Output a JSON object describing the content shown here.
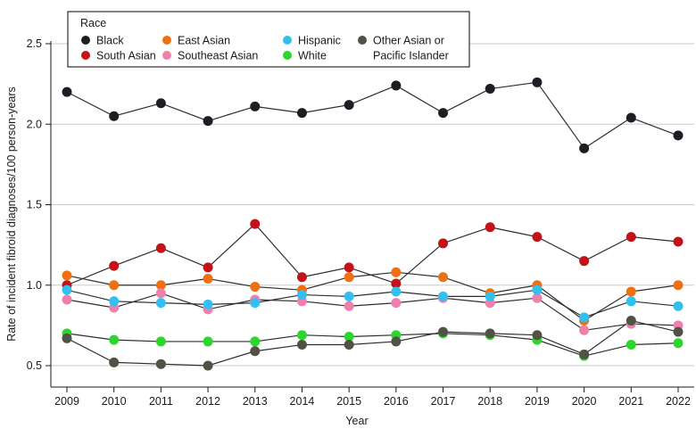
{
  "chart_data": {
    "type": "line",
    "title": "",
    "xlabel": "Year",
    "ylabel": "Rate of incident fibroid diagnoses/100 person-years",
    "legend_title": "Race",
    "x": [
      2009,
      2010,
      2011,
      2012,
      2013,
      2014,
      2015,
      2016,
      2017,
      2018,
      2019,
      2020,
      2021,
      2022
    ],
    "yticks": [
      "0.5",
      "1.0",
      "1.5",
      "2.0",
      "2.5"
    ],
    "ytick_values": [
      0.5,
      1.0,
      1.5,
      2.0,
      2.5
    ],
    "ylim": [
      0.45,
      2.55
    ],
    "grid": true,
    "legend_position": "top-left",
    "line_color": "#2e2e2e",
    "grid_color": "#cbcbcb",
    "axis_color": "#1a1a1a",
    "series": [
      {
        "name": "Black",
        "color": "#1b1e23",
        "values": [
          2.2,
          2.05,
          2.13,
          2.02,
          2.11,
          2.07,
          2.12,
          2.24,
          2.07,
          2.22,
          2.26,
          1.85,
          2.04,
          1.93
        ]
      },
      {
        "name": "South Asian",
        "color": "#c41219",
        "values": [
          1.0,
          1.12,
          1.23,
          1.11,
          1.38,
          1.05,
          1.11,
          1.01,
          1.26,
          1.36,
          1.3,
          1.15,
          1.3,
          1.27
        ]
      },
      {
        "name": "East Asian",
        "color": "#ee7111",
        "values": [
          1.06,
          1.0,
          1.0,
          1.04,
          0.99,
          0.97,
          1.05,
          1.08,
          1.05,
          0.95,
          1.0,
          0.78,
          0.96,
          1.0
        ]
      },
      {
        "name": "Southeast Asian",
        "color": "#f07fad",
        "values": [
          0.91,
          0.86,
          0.95,
          0.85,
          0.91,
          0.9,
          0.87,
          0.89,
          0.92,
          0.89,
          0.92,
          0.72,
          0.76,
          0.75
        ]
      },
      {
        "name": "Hispanic",
        "color": "#33bfef",
        "values": [
          0.97,
          0.9,
          0.89,
          0.88,
          0.89,
          0.94,
          0.93,
          0.96,
          0.93,
          0.93,
          0.97,
          0.8,
          0.9,
          0.87
        ]
      },
      {
        "name": "White",
        "color": "#2cd62c",
        "values": [
          0.7,
          0.66,
          0.65,
          0.65,
          0.65,
          0.69,
          0.68,
          0.69,
          0.7,
          0.69,
          0.66,
          0.56,
          0.63,
          0.64
        ]
      },
      {
        "name": "Other Asian or Pacific Islander",
        "color": "#4f5245",
        "legend_label_lines": [
          "Other Asian or",
          "Pacific Islander"
        ],
        "values": [
          0.67,
          0.52,
          0.51,
          0.5,
          0.59,
          0.63,
          0.63,
          0.65,
          0.71,
          0.7,
          0.69,
          0.57,
          0.78,
          0.71
        ]
      }
    ]
  }
}
